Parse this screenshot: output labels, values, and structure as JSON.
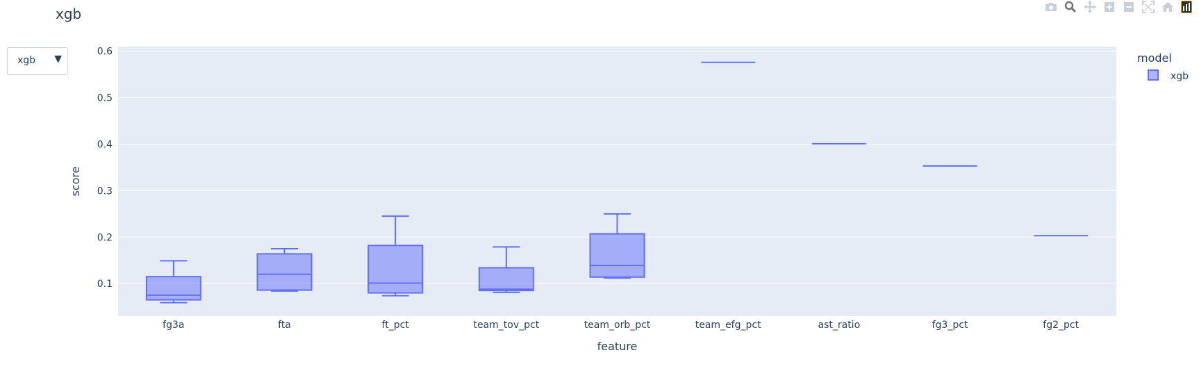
{
  "title": "xgb",
  "dropdown": {
    "selected": "xgb",
    "caret": "▼"
  },
  "modebar": {
    "icons": [
      "camera-icon",
      "zoom-icon",
      "pan-icon",
      "zoom-in-icon",
      "zoom-out-icon",
      "autoscale-icon",
      "home-icon",
      "plotly-logo-icon"
    ]
  },
  "colors": {
    "accent": "#636efa",
    "plot_bg": "#e5ecf6",
    "grid": "#ffffff",
    "text": "#2a3f5f"
  },
  "chart_data": {
    "type": "box",
    "xlabel": "feature",
    "ylabel": "score",
    "ylim": [
      0.03,
      0.61
    ],
    "yticks": [
      0.1,
      0.2,
      0.3,
      0.4,
      0.5,
      0.6
    ],
    "grid": true,
    "legend": {
      "title": "model",
      "placement": "top-right",
      "entries": [
        "xgb"
      ]
    },
    "categories": [
      "fg3a",
      "fta",
      "ft_pct",
      "team_tov_pct",
      "team_orb_pct",
      "team_efg_pct",
      "ast_ratio",
      "fg3_pct",
      "fg2_pct"
    ],
    "series": [
      {
        "name": "xgb",
        "boxes": [
          {
            "min": 0.059,
            "q1": 0.065,
            "median": 0.075,
            "q3": 0.115,
            "max": 0.149
          },
          {
            "min": 0.084,
            "q1": 0.086,
            "median": 0.12,
            "q3": 0.164,
            "max": 0.175
          },
          {
            "min": 0.074,
            "q1": 0.08,
            "median": 0.101,
            "q3": 0.182,
            "max": 0.245
          },
          {
            "min": 0.081,
            "q1": 0.085,
            "median": 0.088,
            "q3": 0.134,
            "max": 0.179
          },
          {
            "min": 0.112,
            "q1": 0.114,
            "median": 0.139,
            "q3": 0.207,
            "max": 0.25
          },
          {
            "min": 0.576,
            "q1": 0.576,
            "median": 0.576,
            "q3": 0.576,
            "max": 0.576
          },
          {
            "min": 0.401,
            "q1": 0.401,
            "median": 0.401,
            "q3": 0.401,
            "max": 0.401
          },
          {
            "min": 0.353,
            "q1": 0.353,
            "median": 0.353,
            "q3": 0.353,
            "max": 0.353
          },
          {
            "min": 0.203,
            "q1": 0.203,
            "median": 0.203,
            "q3": 0.203,
            "max": 0.203
          }
        ]
      }
    ]
  }
}
